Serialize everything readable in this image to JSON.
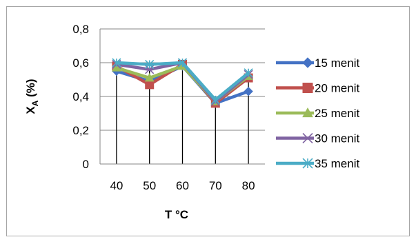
{
  "chart_data": {
    "type": "line",
    "title": "",
    "xlabel": "T °C",
    "ylabel": "X_A (%)",
    "ylabel_main": "X",
    "ylabel_sub": "A",
    "ylabel_rest": " (%)",
    "categories": [
      "40",
      "50",
      "60",
      "70",
      "80"
    ],
    "yticks": [
      "0",
      "0,2",
      "0,4",
      "0,6",
      "0,8"
    ],
    "ytick_values": [
      0,
      0.2,
      0.4,
      0.6,
      0.8
    ],
    "ylim": [
      0,
      0.8
    ],
    "grid": "horizontal",
    "drop_lines": true,
    "legend_position": "right",
    "series": [
      {
        "name": "15 menit",
        "values": [
          0.55,
          0.49,
          0.58,
          0.36,
          0.43
        ],
        "color": "#4472C4",
        "marker": "diamond"
      },
      {
        "name": "20 menit",
        "values": [
          0.58,
          0.47,
          0.59,
          0.36,
          0.51
        ],
        "color": "#C0504D",
        "marker": "square"
      },
      {
        "name": "25 menit",
        "values": [
          0.57,
          0.51,
          0.58,
          0.37,
          0.52
        ],
        "color": "#9BBB59",
        "marker": "triangle"
      },
      {
        "name": "30 menit",
        "values": [
          0.59,
          0.56,
          0.6,
          0.37,
          0.53
        ],
        "color": "#8064A2",
        "marker": "x"
      },
      {
        "name": "35 menit",
        "values": [
          0.6,
          0.59,
          0.6,
          0.38,
          0.54
        ],
        "color": "#4BACC6",
        "marker": "star"
      }
    ]
  }
}
